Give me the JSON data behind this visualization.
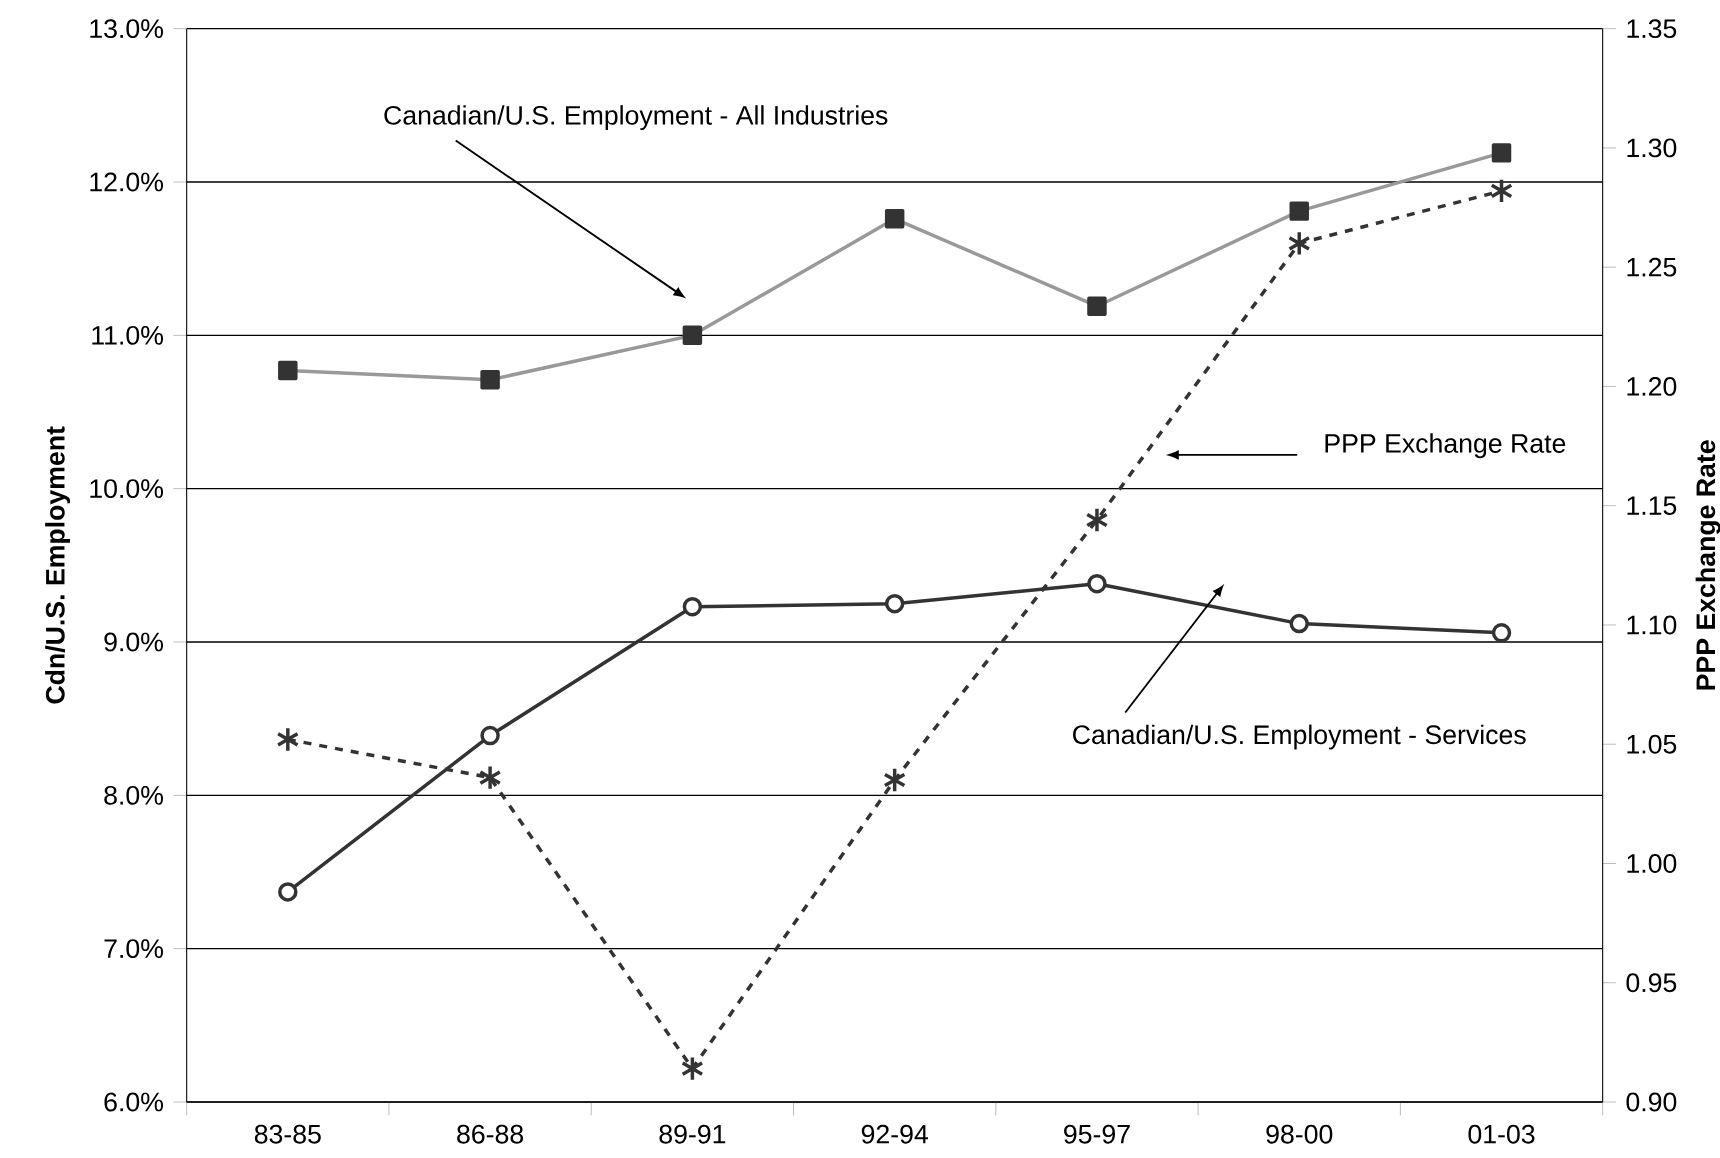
{
  "chart_data": {
    "type": "line",
    "ylabel": "**Cdn/U.S. Employment**",
    "y2label": "**PPP Exchange Rate**",
    "categories": [
      "83-85",
      "86-88",
      "89-91",
      "92-94",
      "95-97",
      "98-00",
      "01-03"
    ],
    "series": [
      {
        "color": "#999999",
        "marker": "square",
        "line_style": "solid",
        "values": [
          10.77,
          10.71,
          11.0,
          11.76,
          11.19,
          11.81,
          12.19
        ]
      },
      {
        "color": "#333333",
        "marker": "circle",
        "line_style": "solid",
        "values": [
          7.37,
          8.39,
          9.23,
          9.25,
          9.38,
          9.12,
          9.06
        ]
      },
      {
        "color": "#333333",
        "marker": "cross",
        "line_style": "dashed",
        "axis": "y2",
        "values": [
          1.052,
          1.036,
          0.914,
          1.035,
          1.144,
          1.26,
          1.282
        ]
      }
    ],
    "ylim": [
      6.0,
      13.0
    ],
    "yticks": [
      {
        "value": 6,
        "label": "6.0%"
      },
      {
        "value": 7,
        "label": "7.0%"
      },
      {
        "value": 8,
        "label": "8.0%"
      },
      {
        "value": 9,
        "label": "9.0%"
      },
      {
        "value": 10,
        "label": "10.0%"
      },
      {
        "value": 11,
        "label": "11.0%"
      },
      {
        "value": 12,
        "label": "12.0%"
      },
      {
        "value": 13,
        "label": "13.0%"
      }
    ],
    "y2lim": [
      0.9,
      1.35
    ],
    "y2ticks": [
      {
        "value": 0.9,
        "label": "0.90"
      },
      {
        "value": 0.95,
        "label": "0.95"
      },
      {
        "value": 1.0,
        "label": "1.00"
      },
      {
        "value": 1.05,
        "label": "1.05"
      },
      {
        "value": 1.1,
        "label": "1.10"
      },
      {
        "value": 1.15,
        "label": "1.15"
      },
      {
        "value": 1.2,
        "label": "1.20"
      },
      {
        "value": 1.25,
        "label": "1.25"
      },
      {
        "value": 1.3,
        "label": "1.30"
      },
      {
        "value": 1.35,
        "label": "1.35"
      }
    ],
    "grid": "y",
    "annotations": [
      "Canadian/U.S. Employment - All Industries",
      "PPP Exchange Rate",
      "Canadian/U.S. Employment - Services"
    ]
  }
}
